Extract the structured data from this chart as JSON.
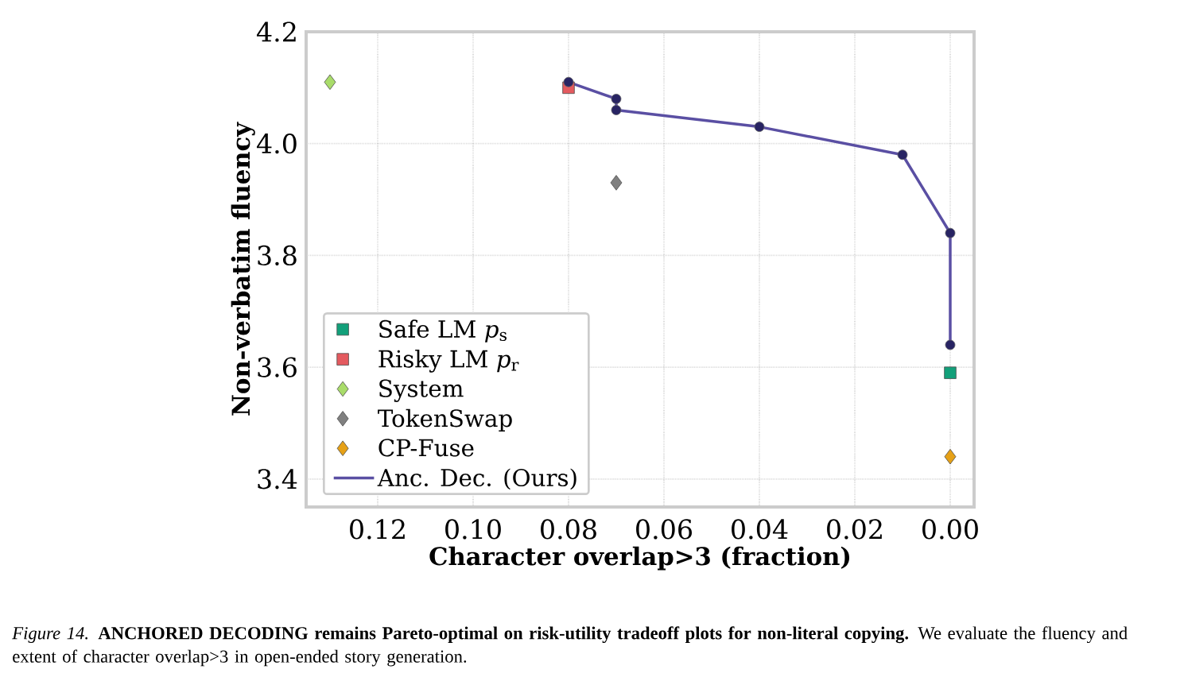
{
  "chart_data": {
    "type": "scatter",
    "xlabel": "Character overlap>3 (fraction)",
    "ylabel": "Non-verbatim fluency",
    "xlim": [
      0.135,
      -0.005
    ],
    "ylim": [
      3.35,
      4.2
    ],
    "xticks": [
      0.12,
      {
        "value": 0.1,
        "label": "0.10"
      },
      0.08,
      0.06,
      0.04,
      0.02,
      {
        "value": 0,
        "label": "0.00"
      }
    ],
    "yticks": [
      3.4,
      3.6,
      3.8,
      {
        "value": 4,
        "label": "4.0"
      },
      4.2
    ],
    "grid": true,
    "legend": "bottom left",
    "series": [
      {
        "name": "Safe LM *p*$_{s}$",
        "marker": "square",
        "color": "#12a07a",
        "x": [
          0.0
        ],
        "values": [
          3.59
        ]
      },
      {
        "name": "Risky LM *p*$_{r}$",
        "marker": "square",
        "color": "#e45a5f",
        "x": [
          0.08
        ],
        "values": [
          4.1
        ]
      },
      {
        "name": "System",
        "marker": "diamond",
        "color": "#a9dc6a",
        "x": [
          0.13
        ],
        "values": [
          4.11
        ]
      },
      {
        "name": "TokenSwap",
        "marker": "diamond",
        "color": "#808080",
        "x": [
          0.07
        ],
        "values": [
          3.93
        ]
      },
      {
        "name": "CP-Fuse",
        "marker": "diamond",
        "color": "#e6a117",
        "x": [
          0.0
        ],
        "values": [
          3.44
        ]
      },
      {
        "name": "Anc. Dec. (Ours)",
        "type": "line",
        "marker": "circle",
        "color": "#5a4fa3",
        "x": [
          0.08,
          0.07,
          0.07,
          0.04,
          0.01,
          0.0,
          0.0
        ],
        "values": [
          4.11,
          4.08,
          4.06,
          4.03,
          3.98,
          3.84,
          3.64
        ]
      }
    ],
    "annotations": [
      "*Figure 14.* **ANCHORED DECODING remains Pareto-optimal on risk-utility tradeoff plots for non-literal copying.** We evaluate the fluency and extent of character overlap>3 in open-ended story generation."
    ]
  }
}
